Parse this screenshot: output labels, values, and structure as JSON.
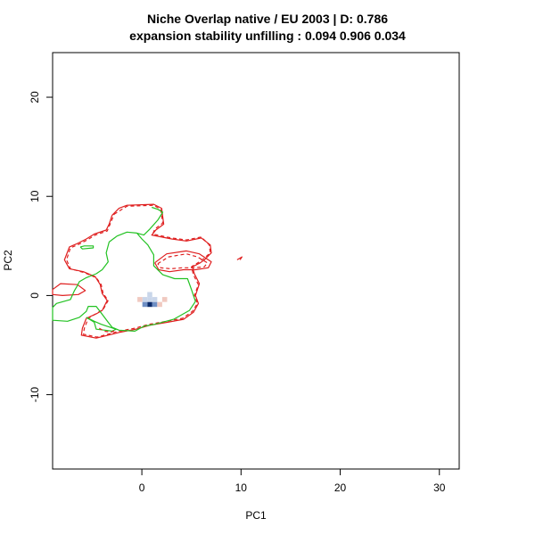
{
  "chart_data": {
    "type": "contour",
    "title": "Niche Overlap native / EU  2003  | D: 0.786",
    "subtitle": "expansion stability unfilling : 0.094 0.906 0.034",
    "xlabel": "PC1",
    "ylabel": "PC2",
    "xlim": [
      -9,
      32
    ],
    "ylim": [
      -17.5,
      24.5
    ],
    "x_ticks": [
      0,
      10,
      20,
      30
    ],
    "y_ticks": [
      -10,
      0,
      10,
      20
    ],
    "grid": false,
    "legend": "none",
    "colors": {
      "native_contour": "#DF1F1F",
      "invaded_contour": "#22C222",
      "density_core": "#0B2A6B",
      "density_mid": "#6F8FC4",
      "density_low": "#C9D6EA",
      "density_expansion": "#F0C9C0",
      "box": "#000000"
    },
    "series": [
      {
        "style": "solid",
        "color": "#DF1F1F",
        "points": [
          [
            -3,
            8.1
          ],
          [
            -2.3,
            8.8
          ],
          [
            -1.5,
            9.1
          ],
          [
            1.2,
            9.2
          ],
          [
            2,
            8.8
          ],
          [
            2.2,
            7.2
          ],
          [
            1.4,
            6.6
          ],
          [
            1,
            6.1
          ],
          [
            3,
            5.7
          ],
          [
            4.5,
            5.5
          ],
          [
            6,
            5.8
          ],
          [
            6.9,
            5.1
          ],
          [
            7,
            4.3
          ],
          [
            6.3,
            3.6
          ],
          [
            5.9,
            3.3
          ],
          [
            5.1,
            2.9
          ],
          [
            5.3,
            2.2
          ],
          [
            5.8,
            1.2
          ],
          [
            5.4,
            0
          ],
          [
            5.7,
            -0.8
          ],
          [
            5.2,
            -1.7
          ],
          [
            4.2,
            -2.4
          ],
          [
            2.6,
            -2.7
          ],
          [
            0.8,
            -3
          ],
          [
            -0.6,
            -3.4
          ],
          [
            -2.2,
            -3.7
          ],
          [
            -4.6,
            -4.3
          ],
          [
            -6.1,
            -4
          ],
          [
            -6,
            -3.3
          ],
          [
            -5.6,
            -2.3
          ],
          [
            -4.5,
            -1.8
          ],
          [
            -4,
            -1.5
          ],
          [
            -3.5,
            -0.5
          ],
          [
            -4,
            0.2
          ],
          [
            -4.2,
            1.1
          ],
          [
            -4.7,
            1.9
          ],
          [
            -5.9,
            2.4
          ],
          [
            -7.3,
            2.7
          ],
          [
            -7.8,
            3.6
          ],
          [
            -7.3,
            4.9
          ],
          [
            -6.6,
            5.2
          ],
          [
            -5.6,
            5.7
          ],
          [
            -4.8,
            6.2
          ],
          [
            -3.6,
            6.6
          ],
          [
            -3.3,
            7.2
          ],
          [
            -3,
            8.1
          ]
        ]
      },
      {
        "style": "dashed",
        "color": "#DF1F1F",
        "points": [
          [
            -2.8,
            8.2
          ],
          [
            -1.5,
            9
          ],
          [
            1.2,
            9.1
          ],
          [
            1.9,
            8.7
          ],
          [
            2.1,
            7.3
          ],
          [
            1.3,
            6.7
          ],
          [
            1.1,
            6.2
          ],
          [
            3,
            5.8
          ],
          [
            4.5,
            5.6
          ],
          [
            6,
            5.9
          ],
          [
            6.8,
            5.1
          ],
          [
            6.9,
            4.3
          ],
          [
            6.2,
            3.7
          ],
          [
            5.8,
            3.4
          ],
          [
            5,
            2.9
          ],
          [
            5.2,
            2.1
          ],
          [
            5.7,
            1.1
          ],
          [
            5.3,
            0
          ],
          [
            5.6,
            -0.8
          ],
          [
            5.1,
            -1.6
          ],
          [
            4.1,
            -2.3
          ],
          [
            2.5,
            -2.6
          ],
          [
            0.7,
            -2.9
          ],
          [
            -0.7,
            -3.3
          ],
          [
            -2.3,
            -3.6
          ],
          [
            -4.5,
            -4.2
          ],
          [
            -5.9,
            -3.9
          ],
          [
            -5.8,
            -3.3
          ],
          [
            -5.4,
            -2.3
          ],
          [
            -4.4,
            -1.7
          ],
          [
            -3.9,
            -1.4
          ],
          [
            -3.4,
            -0.5
          ],
          [
            -3.9,
            0.2
          ],
          [
            -4.1,
            1.1
          ],
          [
            -4.6,
            1.8
          ],
          [
            -5.8,
            2.3
          ],
          [
            -7.2,
            2.7
          ],
          [
            -7.6,
            3.6
          ],
          [
            -7.2,
            4.8
          ],
          [
            -6.5,
            5.1
          ],
          [
            -5.5,
            5.6
          ],
          [
            -4.7,
            6.1
          ],
          [
            -3.5,
            6.5
          ],
          [
            -3.2,
            7.2
          ],
          [
            -2.8,
            8.2
          ]
        ]
      },
      {
        "style": "solid",
        "color": "#DF1F1F",
        "points": [
          [
            1.3,
            3.3
          ],
          [
            2.5,
            4.2
          ],
          [
            4.5,
            4.5
          ],
          [
            5.8,
            4.2
          ],
          [
            7,
            3.4
          ],
          [
            6.7,
            2.8
          ],
          [
            5.4,
            2.6
          ],
          [
            4.2,
            2.6
          ],
          [
            2.8,
            2.4
          ],
          [
            1.7,
            2.6
          ],
          [
            1.3,
            3.3
          ]
        ]
      },
      {
        "style": "dashed",
        "color": "#DF1F1F",
        "points": [
          [
            1.6,
            3.2
          ],
          [
            2.7,
            3.9
          ],
          [
            4.5,
            4.2
          ],
          [
            5.6,
            3.9
          ],
          [
            6.6,
            3.3
          ],
          [
            6.3,
            2.9
          ],
          [
            5.3,
            2.8
          ],
          [
            4.1,
            2.8
          ],
          [
            2.9,
            2.7
          ],
          [
            1.9,
            2.8
          ],
          [
            1.6,
            3.2
          ]
        ]
      },
      {
        "style": "solid",
        "color": "#DF1F1F",
        "points": [
          [
            -9,
            0.6
          ],
          [
            -8.2,
            1.2
          ],
          [
            -6.5,
            1.1
          ],
          [
            -5.7,
            0.5
          ],
          [
            -6.4,
            0.1
          ],
          [
            -8,
            0
          ],
          [
            -9,
            0.1
          ],
          [
            -9,
            0.6
          ]
        ]
      },
      {
        "style": "solid",
        "color": "#DF1F1F",
        "points": [
          [
            9.6,
            3.6
          ],
          [
            10.1,
            3.9
          ],
          [
            9.9,
            3.6
          ]
        ]
      },
      {
        "style": "solid",
        "color": "#22C222",
        "points": [
          [
            1,
            8.9
          ],
          [
            1.6,
            8.7
          ],
          [
            2.1,
            8.4
          ],
          [
            1.6,
            7.6
          ],
          [
            0.8,
            6.7
          ],
          [
            0.2,
            6.1
          ],
          [
            -0.5,
            6.3
          ],
          [
            -1.5,
            6.4
          ],
          [
            -2.5,
            6
          ],
          [
            -3.3,
            5.4
          ],
          [
            -3.6,
            4.3
          ],
          [
            -3.4,
            3.4
          ],
          [
            -4,
            2.6
          ],
          [
            -4.6,
            2.2
          ],
          [
            -5.6,
            1.8
          ],
          [
            -6.3,
            1.4
          ],
          [
            -6.5,
            1
          ],
          [
            -6.8,
            0.5
          ],
          [
            -7.2,
            -0.4
          ],
          [
            -8.6,
            -0.8
          ],
          [
            -9,
            -1.2
          ],
          [
            -9,
            -2.5
          ],
          [
            -7.5,
            -2.6
          ],
          [
            -6.3,
            -2.2
          ],
          [
            -5.6,
            -1.6
          ],
          [
            -5.4,
            -1.1
          ],
          [
            -4.6,
            -1.1
          ],
          [
            -4,
            -1.9
          ],
          [
            -3.4,
            -2.7
          ],
          [
            -3,
            -3.2
          ],
          [
            -2.3,
            -3.5
          ],
          [
            -0.7,
            -3.6
          ],
          [
            0.2,
            -3.1
          ],
          [
            1.3,
            -2.9
          ],
          [
            3.2,
            -2.4
          ],
          [
            4.8,
            -1.5
          ],
          [
            5.4,
            -0.6
          ],
          [
            5,
            0.6
          ],
          [
            4.6,
            1.7
          ],
          [
            3.3,
            1.7
          ],
          [
            2.1,
            2.1
          ],
          [
            1.2,
            3
          ],
          [
            1.2,
            4.1
          ],
          [
            0.6,
            5.1
          ],
          [
            0,
            5.7
          ],
          [
            -0.5,
            6.3
          ]
        ]
      },
      {
        "style": "solid",
        "color": "#22C222",
        "points": [
          [
            -6.2,
            4.9
          ],
          [
            -5.8,
            5
          ],
          [
            -4.9,
            5
          ],
          [
            -4.9,
            4.8
          ],
          [
            -6,
            4.7
          ],
          [
            -6.2,
            4.9
          ]
        ]
      },
      {
        "style": "solid",
        "color": "#22C222",
        "points": [
          [
            -5.6,
            -2.2
          ],
          [
            -4.8,
            -2.7
          ],
          [
            -4.6,
            -3.4
          ],
          [
            -3.7,
            -3.5
          ],
          [
            -3,
            -3.6
          ],
          [
            -2.6,
            -3.4
          ],
          [
            -3.5,
            -3.1
          ],
          [
            -4.1,
            -2.9
          ],
          [
            -4.8,
            -2.6
          ],
          [
            -5.6,
            -2.2
          ]
        ]
      },
      {
        "style": "dashed",
        "color": "#DF1F1F",
        "points": [
          [
            -4.3,
            -3.3
          ],
          [
            -3.8,
            -3.6
          ],
          [
            -3.1,
            -3.7
          ],
          [
            -2.7,
            -3.5
          ]
        ]
      }
    ],
    "density_cells": [
      {
        "x": 0.8,
        "y": -0.9,
        "level": "core"
      },
      {
        "x": 0.3,
        "y": -0.9,
        "level": "mid"
      },
      {
        "x": 1.3,
        "y": -0.9,
        "level": "mid"
      },
      {
        "x": 0.3,
        "y": -0.4,
        "level": "low"
      },
      {
        "x": 0.8,
        "y": -0.4,
        "level": "low"
      },
      {
        "x": 0.8,
        "y": 0.1,
        "level": "low"
      },
      {
        "x": -0.2,
        "y": -0.4,
        "level": "expansion"
      },
      {
        "x": 1.8,
        "y": -0.9,
        "level": "expansion"
      },
      {
        "x": 2.3,
        "y": -0.4,
        "level": "expansion"
      },
      {
        "x": 1.3,
        "y": -0.4,
        "level": "low"
      }
    ]
  }
}
